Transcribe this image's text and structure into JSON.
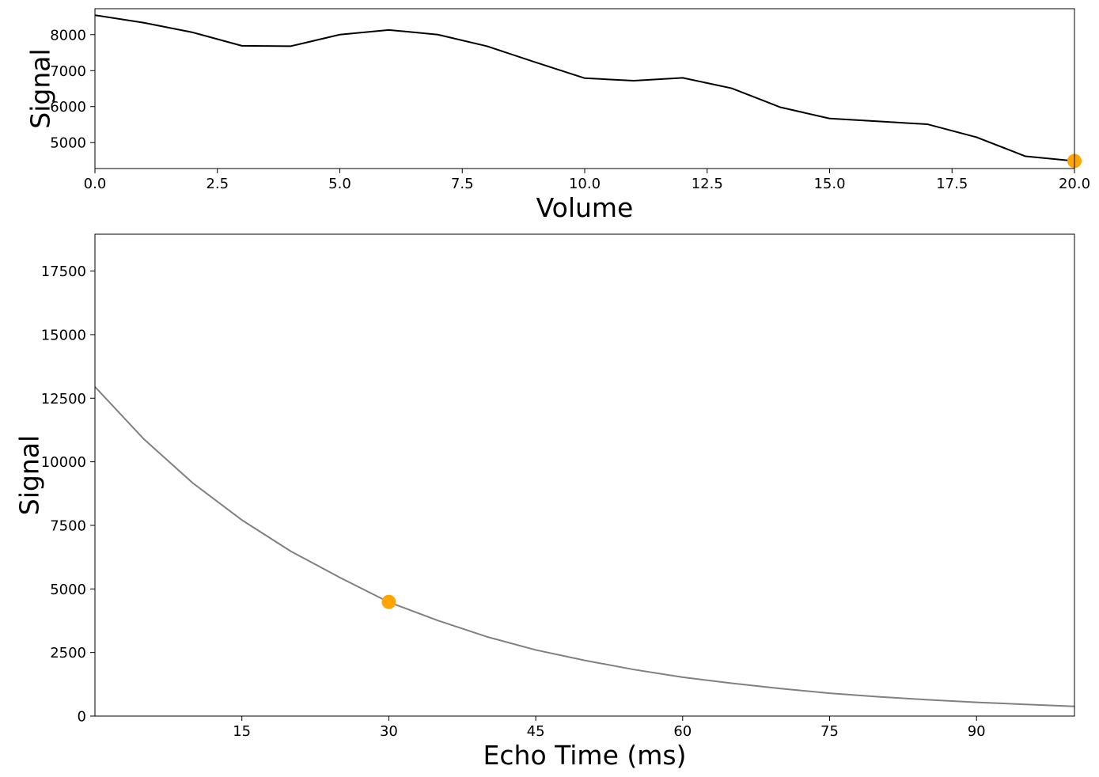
{
  "chart_data": [
    {
      "type": "line",
      "xlabel": "Volume",
      "ylabel": "Signal",
      "xlim": [
        0,
        20
      ],
      "ylim": [
        4280,
        8720
      ],
      "xticks": [
        0.0,
        2.5,
        5.0,
        7.5,
        10.0,
        12.5,
        15.0,
        17.5,
        20.0
      ],
      "xtick_labels": [
        "0.0",
        "2.5",
        "5.0",
        "7.5",
        "10.0",
        "12.5",
        "15.0",
        "17.5",
        "20.0"
      ],
      "yticks": [
        5000,
        6000,
        7000,
        8000
      ],
      "ytick_labels": [
        "5000",
        "6000",
        "7000",
        "8000"
      ],
      "grid": false,
      "series": [
        {
          "color": "#000000",
          "x": [
            0,
            1,
            2,
            3,
            4,
            5,
            6,
            7,
            8,
            9,
            10,
            11,
            12,
            13,
            14,
            15,
            16,
            17,
            18,
            19,
            20
          ],
          "y": [
            8540,
            8330,
            8060,
            7690,
            7680,
            8000,
            8130,
            8000,
            7680,
            7230,
            6790,
            6720,
            6800,
            6510,
            5980,
            5670,
            5590,
            5510,
            5150,
            4620,
            4490
          ]
        }
      ],
      "markers": [
        {
          "x": 20,
          "y": 4490,
          "color": "#FFA500"
        }
      ]
    },
    {
      "type": "line",
      "xlabel": "Echo Time (ms)",
      "ylabel": "Signal",
      "xlim": [
        0,
        100
      ],
      "ylim": [
        0,
        18950
      ],
      "xticks": [
        15,
        30,
        45,
        60,
        75,
        90
      ],
      "xtick_labels": [
        "15",
        "30",
        "45",
        "60",
        "75",
        "90"
      ],
      "yticks": [
        0,
        2500,
        5000,
        7500,
        10000,
        12500,
        15000,
        17500
      ],
      "ytick_labels": [
        "0",
        "2500",
        "5000",
        "7500",
        "10000",
        "12500",
        "15000",
        "17500"
      ],
      "grid": false,
      "series": [
        {
          "color": "#808080",
          "x": [
            0,
            5,
            10,
            15,
            20,
            25,
            30,
            35,
            40,
            45,
            50,
            55,
            60,
            65,
            70,
            75,
            80,
            85,
            90,
            95,
            100
          ],
          "y": [
            12950,
            10890,
            9160,
            7710,
            6480,
            5450,
            4480,
            3760,
            3120,
            2600,
            2190,
            1830,
            1530,
            1290,
            1080,
            900,
            760,
            640,
            540,
            460,
            380
          ]
        }
      ],
      "markers": [
        {
          "x": 30,
          "y": 4490,
          "color": "#FFA500"
        }
      ]
    }
  ]
}
